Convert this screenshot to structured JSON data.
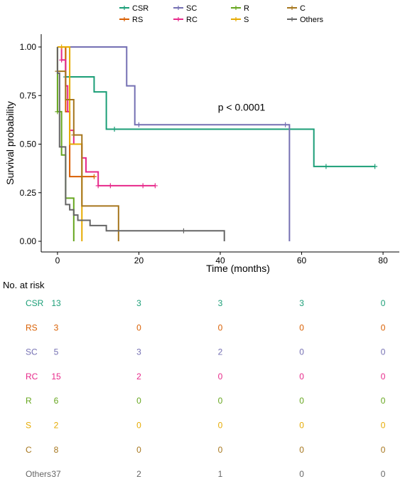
{
  "chart_data": {
    "type": "line",
    "subtype": "kaplan-meier survival curve",
    "xlabel": "Time (months)",
    "ylabel": "Survival probability",
    "xlim": [
      -4,
      84
    ],
    "ylim": [
      0,
      1
    ],
    "x_ticks": [
      "0",
      "20",
      "40",
      "60",
      "80"
    ],
    "x_tick_values": [
      0,
      20,
      40,
      60,
      80
    ],
    "y_ticks": [
      "0.00",
      "0.25",
      "0.50",
      "0.75",
      "1.00"
    ],
    "y_tick_values": [
      0,
      0.25,
      0.5,
      0.75,
      1.0
    ],
    "annotation": "p < 0.0001",
    "annotation_x": 40,
    "annotation_y": 0.68,
    "legend_position": "top",
    "series": [
      {
        "name": "CSR",
        "color": "#1B9E77",
        "steps": [
          [
            0,
            1.0
          ],
          [
            2,
            0.846
          ],
          [
            9,
            0.769
          ],
          [
            12,
            0.577
          ],
          [
            63,
            0.385
          ],
          [
            78,
            0.385
          ]
        ],
        "censors": [
          [
            2,
            0.846
          ],
          [
            14,
            0.577
          ],
          [
            66,
            0.385
          ],
          [
            78,
            0.385
          ]
        ]
      },
      {
        "name": "RS",
        "color": "#D95F02",
        "steps": [
          [
            0,
            1.0
          ],
          [
            2,
            0.667
          ],
          [
            3,
            0.333
          ],
          [
            9,
            0.333
          ]
        ],
        "censors": [
          [
            9,
            0.333
          ]
        ]
      },
      {
        "name": "SC",
        "color": "#7570B3",
        "steps": [
          [
            0,
            1.0
          ],
          [
            17,
            0.8
          ],
          [
            19,
            0.6
          ],
          [
            57,
            0.0
          ]
        ],
        "censors": [
          [
            20,
            0.6
          ],
          [
            56,
            0.6
          ]
        ]
      },
      {
        "name": "RC",
        "color": "#E7298A",
        "steps": [
          [
            0,
            1.0
          ],
          [
            1,
            0.933
          ],
          [
            2,
            0.8
          ],
          [
            2.5,
            0.667
          ],
          [
            3,
            0.571
          ],
          [
            4,
            0.5
          ],
          [
            6,
            0.429
          ],
          [
            7,
            0.357
          ],
          [
            10,
            0.286
          ],
          [
            24,
            0.286
          ]
        ],
        "censors": [
          [
            1,
            0.933
          ],
          [
            10,
            0.286
          ],
          [
            13,
            0.286
          ],
          [
            21,
            0.286
          ],
          [
            24,
            0.286
          ]
        ]
      },
      {
        "name": "R",
        "color": "#66A61E",
        "steps": [
          [
            0,
            0.667
          ],
          [
            1,
            0.444
          ],
          [
            2,
            0.222
          ],
          [
            4,
            0.0
          ]
        ],
        "censors": [
          [
            0,
            0.667
          ]
        ]
      },
      {
        "name": "S",
        "color": "#E6AB02",
        "steps": [
          [
            0,
            1.0
          ],
          [
            3,
            0.5
          ],
          [
            6,
            0.0
          ]
        ],
        "censors": [
          [
            1,
            1.0
          ]
        ]
      },
      {
        "name": "C",
        "color": "#A6761D",
        "steps": [
          [
            0,
            0.875
          ],
          [
            2,
            0.729
          ],
          [
            4,
            0.547
          ],
          [
            6,
            0.182
          ],
          [
            15,
            0.0
          ]
        ],
        "censors": [
          [
            0,
            0.875
          ],
          [
            4,
            0.547
          ]
        ]
      },
      {
        "name": "Others",
        "color": "#666666",
        "steps": [
          [
            0,
            0.865
          ],
          [
            0.5,
            0.486
          ],
          [
            2,
            0.189
          ],
          [
            3,
            0.162
          ],
          [
            4,
            0.135
          ],
          [
            5,
            0.108
          ],
          [
            8,
            0.081
          ],
          [
            12,
            0.054
          ],
          [
            41,
            0.0
          ]
        ],
        "censors": [
          [
            31,
            0.054
          ]
        ]
      }
    ]
  },
  "risk_table": {
    "title": "No. at risk",
    "time_points": [
      0,
      20,
      40,
      60,
      80
    ],
    "rows": [
      {
        "name": "CSR",
        "color": "#1B9E77",
        "values": [
          "13",
          "3",
          "3",
          "3",
          "0"
        ]
      },
      {
        "name": "RS",
        "color": "#D95F02",
        "values": [
          "3",
          "0",
          "0",
          "0",
          "0"
        ]
      },
      {
        "name": "SC",
        "color": "#7570B3",
        "values": [
          "5",
          "3",
          "2",
          "0",
          "0"
        ]
      },
      {
        "name": "RC",
        "color": "#E7298A",
        "values": [
          "15",
          "2",
          "0",
          "0",
          "0"
        ]
      },
      {
        "name": "R",
        "color": "#66A61E",
        "values": [
          "6",
          "0",
          "0",
          "0",
          "0"
        ]
      },
      {
        "name": "S",
        "color": "#E6AB02",
        "values": [
          "2",
          "0",
          "0",
          "0",
          "0"
        ]
      },
      {
        "name": "C",
        "color": "#A6761D",
        "values": [
          "8",
          "0",
          "0",
          "0",
          "0"
        ]
      },
      {
        "name": "Others",
        "color": "#666666",
        "values": [
          "37",
          "2",
          "1",
          "0",
          "0"
        ]
      }
    ]
  }
}
